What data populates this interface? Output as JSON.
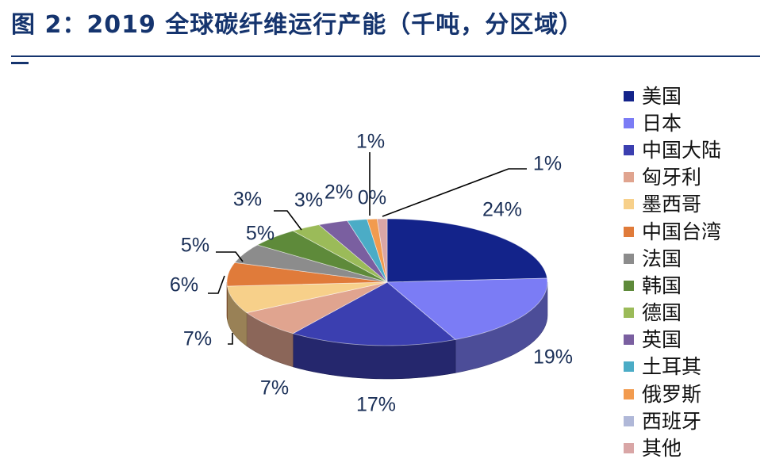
{
  "title": "图 2：2019 全球碳纤维运行产能（千吨，分区域）",
  "chart_data": {
    "type": "pie",
    "title": "图 2：2019 全球碳纤维运行产能（千吨，分区域）",
    "three_d": true,
    "legend_position": "right",
    "categories": [
      "美国",
      "日本",
      "中国大陆",
      "匈牙利",
      "墨西哥",
      "中国台湾",
      "法国",
      "韩国",
      "德国",
      "英国",
      "土耳其",
      "俄罗斯",
      "西班牙",
      "其他"
    ],
    "values": [
      24,
      19,
      17,
      7,
      7,
      6,
      5,
      5,
      3,
      3,
      2,
      1,
      0,
      1
    ],
    "labels": [
      "24%",
      "19%",
      "17%",
      "7%",
      "7%",
      "6%",
      "5%",
      "5%",
      "3%",
      "3%",
      "2%",
      "1%",
      "0%",
      "1%"
    ],
    "colors": [
      "#13238a",
      "#7b7cf5",
      "#3b3fb0",
      "#e0a48f",
      "#f7d08a",
      "#e07b3a",
      "#8c8c8c",
      "#5e8a3a",
      "#9bbb59",
      "#7a5fa0",
      "#4bacc6",
      "#f29b4f",
      "#b0b8d8",
      "#d9a6a6"
    ]
  }
}
